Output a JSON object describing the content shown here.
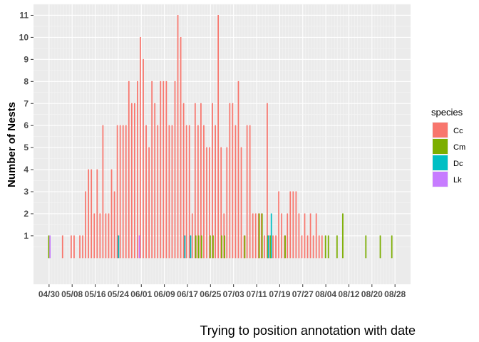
{
  "chart_data": {
    "type": "bar",
    "ylabel": "Number of Nests",
    "caption": "Trying to position annotation with date",
    "x_axis": {
      "type": "date",
      "start": "2021-04-30",
      "end": "2021-08-28",
      "tick_labels": [
        "04/30",
        "05/08",
        "05/16",
        "05/24",
        "06/01",
        "06/09",
        "06/17",
        "06/25",
        "07/03",
        "07/11",
        "07/19",
        "07/27",
        "08/04",
        "08/12",
        "08/20",
        "08/28"
      ]
    },
    "y_axis": {
      "ylim": [
        -1.2,
        11.5
      ],
      "ticks": [
        1,
        2,
        3,
        4,
        5,
        6,
        7,
        8,
        9,
        10,
        11
      ]
    },
    "grid": true,
    "legend": {
      "title": "species",
      "position": "right",
      "entries": [
        {
          "name": "Cc",
          "color": "#F8766D"
        },
        {
          "name": "Cm",
          "color": "#7CAE00"
        },
        {
          "name": "Dc",
          "color": "#00BFC4"
        },
        {
          "name": "Lk",
          "color": "#C77CFF"
        }
      ]
    },
    "series": [
      {
        "name": "Cc",
        "color": "#F8766D",
        "points": [
          [
            "05/05",
            1
          ],
          [
            "05/08",
            1
          ],
          [
            "05/09",
            1
          ],
          [
            "05/11",
            1
          ],
          [
            "05/12",
            1
          ],
          [
            "05/13",
            3
          ],
          [
            "05/14",
            4
          ],
          [
            "05/15",
            4
          ],
          [
            "05/16",
            2
          ],
          [
            "05/17",
            4
          ],
          [
            "05/18",
            2
          ],
          [
            "05/19",
            6
          ],
          [
            "05/20",
            2
          ],
          [
            "05/21",
            2
          ],
          [
            "05/22",
            4
          ],
          [
            "05/23",
            3
          ],
          [
            "05/24",
            6
          ],
          [
            "05/25",
            6
          ],
          [
            "05/26",
            6
          ],
          [
            "05/27",
            6
          ],
          [
            "05/28",
            8
          ],
          [
            "05/29",
            7
          ],
          [
            "05/30",
            7
          ],
          [
            "05/31",
            8
          ],
          [
            "06/01",
            10
          ],
          [
            "06/02",
            9
          ],
          [
            "06/03",
            6
          ],
          [
            "06/04",
            5
          ],
          [
            "06/05",
            8
          ],
          [
            "06/06",
            7
          ],
          [
            "06/07",
            6
          ],
          [
            "06/08",
            8
          ],
          [
            "06/09",
            8
          ],
          [
            "06/10",
            8
          ],
          [
            "06/11",
            6
          ],
          [
            "06/12",
            6
          ],
          [
            "06/13",
            8
          ],
          [
            "06/14",
            11
          ],
          [
            "06/15",
            10
          ],
          [
            "06/16",
            7
          ],
          [
            "06/17",
            6
          ],
          [
            "06/18",
            6
          ],
          [
            "06/19",
            2
          ],
          [
            "06/20",
            7
          ],
          [
            "06/21",
            6
          ],
          [
            "06/22",
            7
          ],
          [
            "06/23",
            6
          ],
          [
            "06/24",
            5
          ],
          [
            "06/25",
            5
          ],
          [
            "06/26",
            7
          ],
          [
            "06/27",
            6
          ],
          [
            "06/28",
            11
          ],
          [
            "06/29",
            5
          ],
          [
            "06/30",
            2
          ],
          [
            "07/01",
            5
          ],
          [
            "07/02",
            7
          ],
          [
            "07/03",
            7
          ],
          [
            "07/04",
            6
          ],
          [
            "07/05",
            8
          ],
          [
            "07/06",
            5
          ],
          [
            "07/07",
            1
          ],
          [
            "07/08",
            6
          ],
          [
            "07/09",
            6
          ],
          [
            "07/10",
            2
          ],
          [
            "07/11",
            2
          ],
          [
            "07/12",
            2
          ],
          [
            "07/13",
            2
          ],
          [
            "07/14",
            1
          ],
          [
            "07/15",
            7
          ],
          [
            "07/16",
            1
          ],
          [
            "07/17",
            1
          ],
          [
            "07/18",
            1
          ],
          [
            "07/19",
            3
          ],
          [
            "07/20",
            2
          ],
          [
            "07/21",
            1
          ],
          [
            "07/22",
            2
          ],
          [
            "07/23",
            3
          ],
          [
            "07/24",
            3
          ],
          [
            "07/25",
            3
          ],
          [
            "07/26",
            2
          ],
          [
            "07/27",
            1
          ],
          [
            "07/28",
            2
          ],
          [
            "07/29",
            1
          ],
          [
            "07/30",
            2
          ],
          [
            "07/31",
            1
          ],
          [
            "08/01",
            2
          ],
          [
            "08/02",
            1
          ],
          [
            "08/03",
            1
          ]
        ]
      },
      {
        "name": "Cm",
        "color": "#7CAE00",
        "points": [
          [
            "04/30",
            1
          ],
          [
            "06/20",
            1
          ],
          [
            "06/21",
            1
          ],
          [
            "06/22",
            1
          ],
          [
            "06/25",
            1
          ],
          [
            "06/26",
            1
          ],
          [
            "06/29",
            1
          ],
          [
            "06/30",
            1
          ],
          [
            "07/07",
            1
          ],
          [
            "07/12",
            2
          ],
          [
            "07/13",
            2
          ],
          [
            "07/15",
            1
          ],
          [
            "07/16",
            1
          ],
          [
            "07/21",
            1
          ],
          [
            "08/04",
            1
          ],
          [
            "08/05",
            1
          ],
          [
            "08/08",
            1
          ],
          [
            "08/10",
            2
          ],
          [
            "08/18",
            1
          ],
          [
            "08/23",
            1
          ],
          [
            "08/27",
            1
          ]
        ]
      },
      {
        "name": "Dc",
        "color": "#00BFC4",
        "points": [
          [
            "05/24",
            1
          ],
          [
            "06/16",
            1
          ],
          [
            "06/18",
            1
          ],
          [
            "07/15",
            1
          ],
          [
            "07/16",
            2
          ]
        ]
      },
      {
        "name": "Lk",
        "color": "#C77CFF",
        "points": [
          [
            "04/30",
            1
          ],
          [
            "05/31",
            1
          ]
        ]
      }
    ]
  }
}
